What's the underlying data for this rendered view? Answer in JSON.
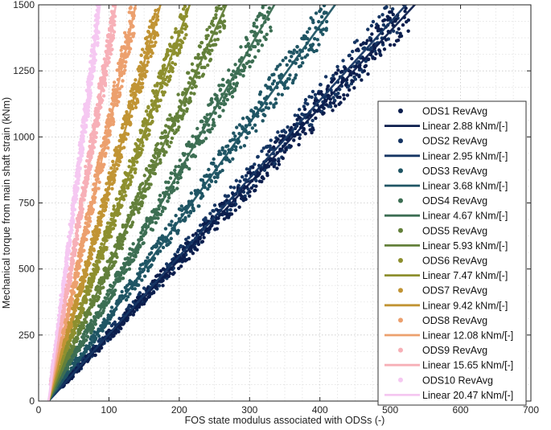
{
  "chart_data": {
    "type": "scatter",
    "xlabel": "FOS state modulus associated with ODSs (-)",
    "ylabel": "Mechanical torque from main shaft strain (kNm)",
    "xlim": [
      0,
      700
    ],
    "ylim": [
      0,
      1500
    ],
    "x_ticks": [
      "0",
      "100",
      "200",
      "300",
      "400",
      "500",
      "600",
      "700"
    ],
    "y_ticks": [
      "0",
      "250",
      "500",
      "750",
      "1000",
      "1250",
      "1500"
    ],
    "grid": "dotted major and minor",
    "legend_position": "right",
    "series": [
      {
        "name": "ODS1 RevAvg",
        "fit_label": "Linear 2.88 kNm/[-]",
        "slope": 2.88,
        "x_range": [
          14,
          525
        ],
        "color": "#0c1e4d"
      },
      {
        "name": "ODS2 RevAvg",
        "fit_label": "Linear 2.95 kNm/[-]",
        "slope": 2.95,
        "x_range": [
          14,
          510
        ],
        "color": "#153563"
      },
      {
        "name": "ODS3 RevAvg",
        "fit_label": "Linear 3.68 kNm/[-]",
        "slope": 3.68,
        "x_range": [
          14,
          410
        ],
        "color": "#1f5564"
      },
      {
        "name": "ODS4 RevAvg",
        "fit_label": "Linear 4.67 kNm/[-]",
        "slope": 4.67,
        "x_range": [
          14,
          330
        ],
        "color": "#3c6e53"
      },
      {
        "name": "ODS5 RevAvg",
        "fit_label": "Linear 5.93 kNm/[-]",
        "slope": 5.93,
        "x_range": [
          14,
          265
        ],
        "color": "#63803a"
      },
      {
        "name": "ODS6 RevAvg",
        "fit_label": "Linear 7.47 kNm/[-]",
        "slope": 7.47,
        "x_range": [
          14,
          212
        ],
        "color": "#8d8f2e"
      },
      {
        "name": "ODS7 RevAvg",
        "fit_label": "Linear 9.42 kNm/[-]",
        "slope": 9.42,
        "x_range": [
          14,
          170
        ],
        "color": "#c19434"
      },
      {
        "name": "ODS8 RevAvg",
        "fit_label": "Linear 12.08 kNm/[-]",
        "slope": 12.08,
        "x_range": [
          14,
          136
        ],
        "color": "#eca06e"
      },
      {
        "name": "ODS9 RevAvg",
        "fit_label": "Linear 15.65 kNm/[-]",
        "slope": 15.65,
        "x_range": [
          14,
          108
        ],
        "color": "#f7b0b7"
      },
      {
        "name": "ODS10 RevAvg",
        "fit_label": "Linear 20.47 kNm/[-]",
        "slope": 20.47,
        "x_range": [
          14,
          85
        ],
        "color": "#f5c8f1"
      }
    ]
  }
}
